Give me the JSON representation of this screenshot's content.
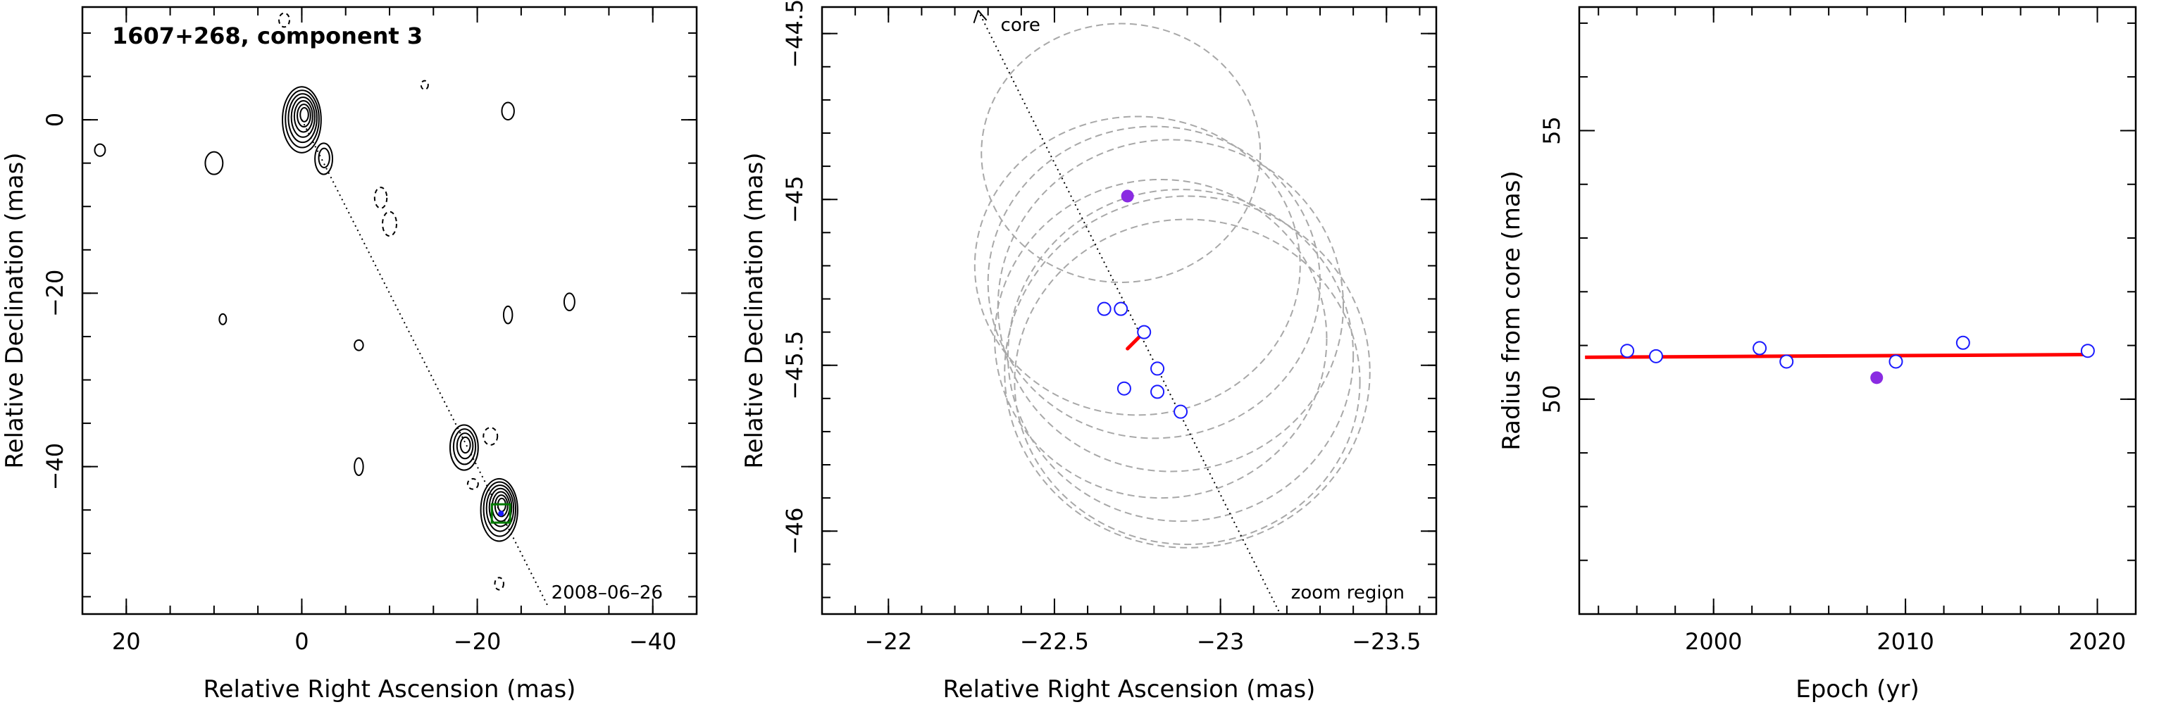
{
  "chart_data": [
    {
      "type": "contour",
      "title": "1607+268, component 3",
      "epoch_label": "2008–06–26",
      "xlabel": "Relative Right Ascension (mas)",
      "ylabel": "Relative Declination (mas)",
      "xlim": [
        25,
        -45
      ],
      "ylim": [
        -57,
        13
      ],
      "xticks": [
        20,
        0,
        -20,
        -40
      ],
      "yticks": [
        0,
        -20,
        -40
      ],
      "xtick_labels": [
        "20",
        "0",
        "−20",
        "−40"
      ],
      "ytick_labels": [
        "0",
        "−20",
        "−40"
      ],
      "core_position": [
        0,
        0
      ],
      "component_position": [
        -22.7,
        -45.4
      ],
      "trajectory": [
        [
          0,
          0
        ],
        [
          -28,
          -56
        ]
      ],
      "contour_blobs": [
        {
          "x": 0,
          "y": 0,
          "rx": 2.2,
          "ry": 3.8,
          "levels": 7
        },
        {
          "x": -2.5,
          "y": -4.5,
          "rx": 1.0,
          "ry": 1.8,
          "levels": 2
        },
        {
          "x": -18.5,
          "y": -37.8,
          "rx": 1.6,
          "ry": 2.6,
          "levels": 4
        },
        {
          "x": -22.5,
          "y": -45.0,
          "rx": 2.1,
          "ry": 3.6,
          "levels": 7
        },
        {
          "x": 10,
          "y": -5,
          "rx": 1.0,
          "ry": 1.3,
          "levels": 1
        },
        {
          "x": -23.5,
          "y": 1,
          "rx": 0.7,
          "ry": 1.0,
          "levels": 1
        },
        {
          "x": -30.5,
          "y": -21,
          "rx": 0.6,
          "ry": 1.0,
          "levels": 1
        },
        {
          "x": -23.5,
          "y": -22.5,
          "rx": 0.5,
          "ry": 1.0,
          "levels": 1
        },
        {
          "x": -6.5,
          "y": -26,
          "rx": 0.5,
          "ry": 0.6,
          "levels": 1
        },
        {
          "x": -6.5,
          "y": -40,
          "rx": 0.5,
          "ry": 1.0,
          "levels": 1
        },
        {
          "x": 23,
          "y": -3.5,
          "rx": 0.6,
          "ry": 0.7,
          "levels": 1
        },
        {
          "x": 9,
          "y": -23,
          "rx": 0.4,
          "ry": 0.6,
          "levels": 1
        }
      ],
      "dashed_blobs": [
        {
          "x": -9,
          "y": -9,
          "rx": 0.7,
          "ry": 1.2
        },
        {
          "x": -10,
          "y": -12,
          "rx": 0.8,
          "ry": 1.4
        },
        {
          "x": -21.5,
          "y": -36.5,
          "rx": 0.8,
          "ry": 1.0
        },
        {
          "x": -19.5,
          "y": -42,
          "rx": 0.6,
          "ry": 0.6
        },
        {
          "x": -22.5,
          "y": -53.5,
          "rx": 0.5,
          "ry": 0.7
        },
        {
          "x": 2,
          "y": 11.5,
          "rx": 0.6,
          "ry": 0.8
        },
        {
          "x": -14,
          "y": 4,
          "rx": 0.4,
          "ry": 0.5
        }
      ]
    },
    {
      "type": "scatter",
      "xlabel": "Relative Right Ascension (mas)",
      "ylabel": "Relative Declination (mas)",
      "core_label": "core",
      "zoom_label": "zoom region",
      "xlim": [
        -21.8,
        -23.65
      ],
      "ylim": [
        -46.25,
        -44.42
      ],
      "xticks": [
        -22,
        -22.5,
        -23,
        -23.5
      ],
      "yticks": [
        -44.5,
        -45,
        -45.5,
        -46
      ],
      "xtick_labels": [
        "−22",
        "−22.5",
        "−23",
        "−23.5"
      ],
      "ytick_labels": [
        "−44.5",
        "−45",
        "−45.5",
        "−46"
      ],
      "open_points": [
        {
          "x": -22.65,
          "y": -45.33
        },
        {
          "x": -22.7,
          "y": -45.33
        },
        {
          "x": -22.77,
          "y": -45.4
        },
        {
          "x": -22.81,
          "y": -45.51
        },
        {
          "x": -22.71,
          "y": -45.57
        },
        {
          "x": -22.81,
          "y": -45.58
        },
        {
          "x": -22.88,
          "y": -45.64
        }
      ],
      "filled_point": {
        "x": -22.72,
        "y": -44.99
      },
      "ellipses": [
        {
          "x": -22.7,
          "y": -44.86,
          "rx": 0.42,
          "ry": 0.39
        },
        {
          "x": -22.75,
          "y": -45.2,
          "rx": 0.49,
          "ry": 0.45
        },
        {
          "x": -22.8,
          "y": -45.25,
          "rx": 0.5,
          "ry": 0.47
        },
        {
          "x": -22.85,
          "y": -45.32,
          "rx": 0.52,
          "ry": 0.5
        },
        {
          "x": -22.82,
          "y": -45.42,
          "rx": 0.5,
          "ry": 0.48
        },
        {
          "x": -22.88,
          "y": -45.47,
          "rx": 0.52,
          "ry": 0.5
        },
        {
          "x": -22.9,
          "y": -45.52,
          "rx": 0.55,
          "ry": 0.53
        },
        {
          "x": -22.9,
          "y": -45.55,
          "rx": 0.52,
          "ry": 0.49
        }
      ],
      "trajectory": [
        [
          -22.27,
          -44.43
        ],
        [
          -23.18,
          -46.25
        ]
      ],
      "motion_vector": [
        [
          -22.77,
          -45.4
        ],
        [
          -22.72,
          -45.45
        ]
      ]
    },
    {
      "type": "scatter",
      "xlabel": "Epoch (yr)",
      "ylabel": "Radius from core (mas)",
      "xlim": [
        1993,
        2022
      ],
      "ylim": [
        46,
        57.3
      ],
      "xticks": [
        2000,
        2010,
        2020
      ],
      "yticks": [
        50,
        55
      ],
      "xtick_labels": [
        "2000",
        "2010",
        "2020"
      ],
      "ytick_labels": [
        "50",
        "55"
      ],
      "open_points": [
        {
          "x": 1995.5,
          "y": 50.9
        },
        {
          "x": 1997.0,
          "y": 50.8
        },
        {
          "x": 2002.4,
          "y": 50.95
        },
        {
          "x": 2003.8,
          "y": 50.7
        },
        {
          "x": 2009.5,
          "y": 50.7
        },
        {
          "x": 2013.0,
          "y": 51.05
        },
        {
          "x": 2019.5,
          "y": 50.9
        }
      ],
      "filled_point": {
        "x": 2008.5,
        "y": 50.4
      },
      "fit_line": [
        [
          1993.3,
          50.78
        ],
        [
          2019.4,
          50.83
        ]
      ]
    }
  ],
  "colors": {
    "axes": "#000000",
    "contour": "#000000",
    "ellipse": "#a8a8a8",
    "open_point": "#1a1aff",
    "filled_point": "#8a2be2",
    "fit_line": "#ff0000",
    "marker_box": "#007a00"
  }
}
